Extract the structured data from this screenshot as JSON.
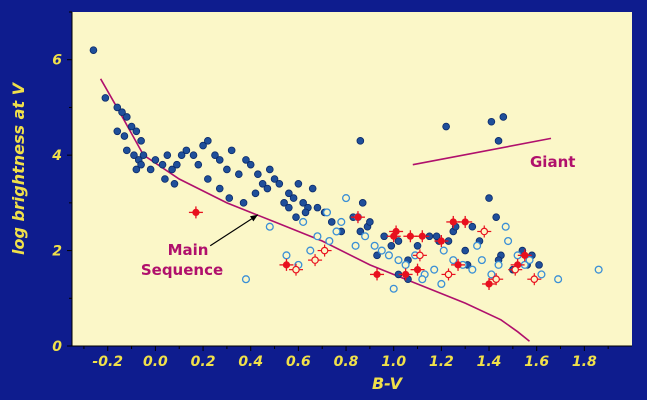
{
  "chart_data": {
    "type": "scatter",
    "xlabel": "B-V",
    "ylabel": "log brightness at V",
    "xlim": [
      -0.35,
      2.0
    ],
    "ylim": [
      0,
      7
    ],
    "x_ticks": [
      "-0.2",
      "0.0",
      "0.2",
      "0.4",
      "0.6",
      "0.8",
      "1.0",
      "1.2",
      "1.4",
      "1.6",
      "1.8"
    ],
    "y_ticks": [
      "0",
      "2",
      "4",
      "6"
    ],
    "grid": false,
    "colors": {
      "background": "#0e1c8e",
      "plot_area": "#fbf7c8",
      "axis_text": "#f0e04a",
      "curve": "#b0106c",
      "filled_marker": "#1f4f9a",
      "open_marker": "#3a8fd6",
      "red_marker": "#e8101e"
    },
    "annotations": [
      {
        "text": "Main",
        "points_to": "main-sequence-curve"
      },
      {
        "text": "Sequence",
        "points_to": "main-sequence-curve"
      },
      {
        "text": "Giant",
        "points_to": "giant-line"
      }
    ],
    "series": [
      {
        "marker": "filled-blue",
        "x": [
          -0.26,
          -0.21,
          -0.16,
          -0.14,
          -0.12,
          -0.16,
          -0.13,
          -0.1,
          -0.08,
          -0.06,
          -0.12,
          -0.09,
          -0.07,
          -0.05,
          -0.08,
          -0.06,
          -0.02,
          0.0,
          0.03,
          0.05,
          0.07,
          0.09,
          0.11,
          0.04,
          0.08,
          0.13,
          0.16,
          0.18,
          0.2,
          0.22,
          0.25,
          0.27,
          0.3,
          0.32,
          0.35,
          0.38,
          0.4,
          0.43,
          0.45,
          0.48,
          0.5,
          0.22,
          0.27,
          0.31,
          0.37,
          0.42,
          0.47,
          0.52,
          0.54,
          0.56,
          0.58,
          0.6,
          0.62,
          0.64,
          0.66,
          0.56,
          0.59,
          0.63,
          0.68,
          0.71,
          0.74,
          0.78,
          0.83,
          0.86,
          0.87,
          0.89,
          0.86,
          0.9,
          0.93,
          0.96,
          0.99,
          1.02,
          1.06,
          1.1,
          1.15,
          1.19,
          1.25,
          1.3,
          1.33,
          1.36,
          1.4,
          1.43,
          1.45,
          1.5,
          1.54,
          1.58,
          1.61,
          1.02,
          1.06,
          1.18,
          1.26,
          1.31,
          1.44,
          1.56,
          1.22,
          1.41,
          1.46,
          1.44,
          1.23
        ],
        "y": [
          6.2,
          5.2,
          5.0,
          4.9,
          4.8,
          4.5,
          4.4,
          4.6,
          4.5,
          4.3,
          4.1,
          4.0,
          3.9,
          4.0,
          3.7,
          3.8,
          3.7,
          3.9,
          3.8,
          4.0,
          3.7,
          3.8,
          4.0,
          3.5,
          3.4,
          4.1,
          4.0,
          3.8,
          4.2,
          4.3,
          4.0,
          3.9,
          3.7,
          4.1,
          3.6,
          3.9,
          3.8,
          3.6,
          3.4,
          3.7,
          3.5,
          3.5,
          3.3,
          3.1,
          3.0,
          3.2,
          3.3,
          3.4,
          3.0,
          3.2,
          3.1,
          3.4,
          3.0,
          2.9,
          3.3,
          2.9,
          2.7,
          2.8,
          2.9,
          2.8,
          2.6,
          2.4,
          2.7,
          4.3,
          3.0,
          2.5,
          2.4,
          2.6,
          1.9,
          2.3,
          2.1,
          2.2,
          1.8,
          2.1,
          2.3,
          2.2,
          2.4,
          2.0,
          2.5,
          2.2,
          3.1,
          2.7,
          1.9,
          1.6,
          2.0,
          1.9,
          1.7,
          1.5,
          1.4,
          2.3,
          2.5,
          1.7,
          1.8,
          1.7,
          4.6,
          4.7,
          4.8,
          4.3,
          2.2
        ]
      },
      {
        "marker": "open-blue",
        "x": [
          0.38,
          0.48,
          0.55,
          0.62,
          0.68,
          0.72,
          0.76,
          0.8,
          0.84,
          0.88,
          0.92,
          0.95,
          0.98,
          1.02,
          1.05,
          1.09,
          1.13,
          1.17,
          1.21,
          1.25,
          1.29,
          1.33,
          1.37,
          1.41,
          1.44,
          1.48,
          1.52,
          1.57,
          1.62,
          1.69,
          1.86,
          0.6,
          0.65,
          0.73,
          0.78,
          0.85,
          1.0,
          1.12,
          1.2,
          1.35,
          1.47,
          1.55
        ],
        "y": [
          1.4,
          2.5,
          1.9,
          2.6,
          2.3,
          2.8,
          2.4,
          3.1,
          2.1,
          2.3,
          2.1,
          2.0,
          1.9,
          1.8,
          1.7,
          1.9,
          1.5,
          1.6,
          2.0,
          1.8,
          1.7,
          1.6,
          1.8,
          1.5,
          1.7,
          2.2,
          1.9,
          1.8,
          1.5,
          1.4,
          1.6,
          1.7,
          2.0,
          2.2,
          2.6,
          2.7,
          1.2,
          1.4,
          1.3,
          2.1,
          2.5,
          1.7
        ]
      },
      {
        "marker": "red-filled",
        "x": [
          0.17,
          0.55,
          0.85,
          1.0,
          1.01,
          1.07,
          1.12,
          1.2,
          1.25,
          1.3,
          0.93,
          1.05,
          1.1,
          1.27,
          1.4,
          1.52,
          1.55
        ],
        "y": [
          2.8,
          1.7,
          2.7,
          2.3,
          2.4,
          2.3,
          2.3,
          2.2,
          2.6,
          2.6,
          1.5,
          1.5,
          1.6,
          1.7,
          1.3,
          1.7,
          1.9
        ]
      },
      {
        "marker": "red-open-cross",
        "x": [
          0.59,
          0.67,
          0.71,
          1.11,
          1.23,
          1.38,
          1.43,
          1.51,
          1.59
        ],
        "y": [
          1.6,
          1.8,
          2.0,
          1.9,
          1.5,
          2.4,
          1.4,
          1.6,
          1.4
        ]
      }
    ],
    "curves": [
      {
        "name": "main-sequence",
        "x": [
          -0.23,
          -0.15,
          -0.05,
          0.1,
          0.3,
          0.5,
          0.7,
          0.9,
          1.1,
          1.3,
          1.45,
          1.52,
          1.57
        ],
        "y": [
          5.6,
          4.9,
          4.0,
          3.5,
          3.0,
          2.6,
          2.2,
          1.7,
          1.3,
          0.9,
          0.55,
          0.3,
          0.1
        ]
      },
      {
        "name": "giant",
        "x": [
          1.08,
          1.66
        ],
        "y": [
          3.8,
          4.35
        ]
      }
    ],
    "arrow": {
      "from": [
        0.23,
        2.1
      ],
      "to": [
        0.43,
        2.75
      ]
    }
  }
}
